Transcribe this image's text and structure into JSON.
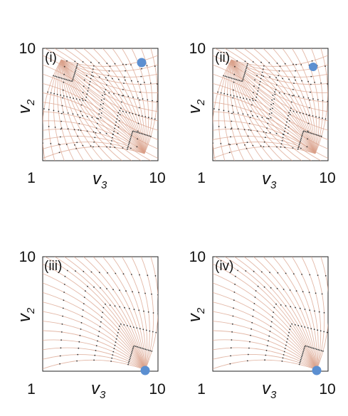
{
  "chart_data": [
    {
      "type": "scatter",
      "panel_label": "(i)",
      "xlabel": "v3",
      "ylabel": "v2",
      "x_tick_labels": [
        "1",
        "10"
      ],
      "y_tick_labels": [
        "10"
      ],
      "x_range": [
        1,
        10
      ],
      "y_range": [
        1,
        10
      ],
      "fixed_points": [
        {
          "x": 8.6,
          "y": 9.3,
          "color": "#5b8fd1"
        }
      ],
      "flow": "streamlines",
      "stream_color": "#d9a08a"
    },
    {
      "type": "scatter",
      "panel_label": "(ii)",
      "xlabel": "v3",
      "ylabel": "v2",
      "x_tick_labels": [
        "1",
        "10"
      ],
      "y_tick_labels": [
        "10"
      ],
      "x_range": [
        1,
        10
      ],
      "y_range": [
        1,
        10
      ],
      "fixed_points": [
        {
          "x": 8.6,
          "y": 8.9,
          "color": "#5b8fd1"
        }
      ],
      "flow": "streamlines",
      "stream_color": "#d9a08a"
    },
    {
      "type": "scatter",
      "panel_label": "(iii)",
      "xlabel": "v3",
      "ylabel": "v2",
      "x_tick_labels": [
        "1",
        "10"
      ],
      "y_tick_labels": [
        "10"
      ],
      "x_range": [
        1,
        10
      ],
      "y_range": [
        1,
        10
      ],
      "fixed_points": [
        {
          "x": 8.8,
          "y": 1.0,
          "color": "#5b8fd1"
        }
      ],
      "flow": "streamlines",
      "stream_color": "#d9a08a"
    },
    {
      "type": "scatter",
      "panel_label": "(iv)",
      "xlabel": "v3",
      "ylabel": "v2",
      "x_tick_labels": [
        "1",
        "10"
      ],
      "y_tick_labels": [
        "10"
      ],
      "x_range": [
        1,
        10
      ],
      "y_range": [
        1,
        10
      ],
      "fixed_points": [
        {
          "x": 9.5,
          "y": 1.0,
          "color": "#5b8fd1"
        }
      ],
      "flow": "streamlines",
      "stream_color": "#d9a08a"
    }
  ]
}
